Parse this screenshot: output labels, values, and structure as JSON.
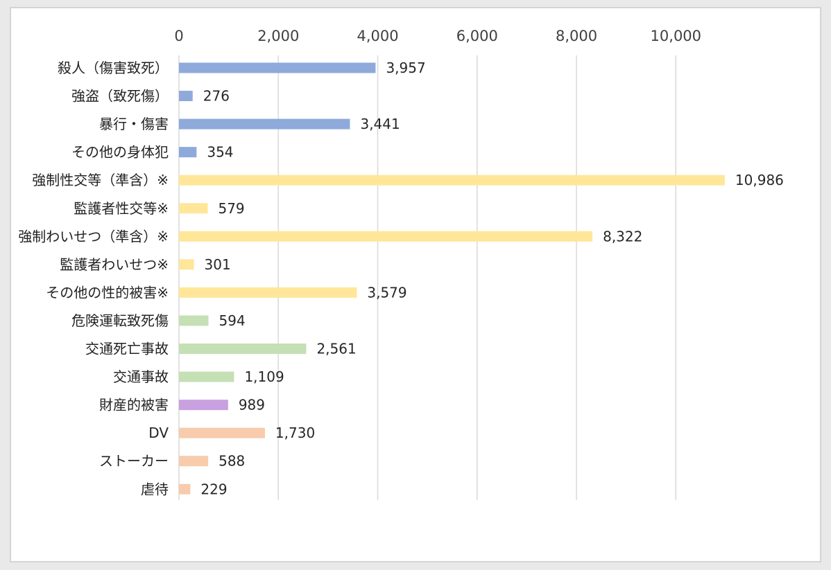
{
  "chart_data": {
    "type": "bar",
    "orientation": "horizontal",
    "title": "",
    "xlabel": "",
    "ylabel": "",
    "xlim": [
      0,
      11000
    ],
    "x_ticks": [
      0,
      2000,
      4000,
      6000,
      8000,
      10000
    ],
    "x_tick_labels": [
      "0",
      "2,000",
      "4,000",
      "6,000",
      "8,000",
      "10,000"
    ],
    "axis_position": "top",
    "grid": true,
    "legend": "none",
    "categories": [
      "殺人（傷害致死）",
      "強盗（致死傷）",
      "暴行・傷害",
      "その他の身体犯",
      "強制性交等（準含）※",
      "監護者性交等※",
      "強制わいせつ（準含）※",
      "監護者わいせつ※",
      "その他の性的被害※",
      "危険運転致死傷",
      "交通死亡事故",
      "交通事故",
      "財産的被害",
      "DV",
      "ストーカー",
      "虐待"
    ],
    "values": [
      3957,
      276,
      3441,
      354,
      10986,
      579,
      8322,
      301,
      3579,
      594,
      2561,
      1109,
      989,
      1730,
      588,
      229
    ],
    "value_labels": [
      "3,957",
      "276",
      "3,441",
      "354",
      "10,986",
      "579",
      "8,322",
      "301",
      "3,579",
      "594",
      "2,561",
      "1,109",
      "989",
      "1,730",
      "588",
      "229"
    ],
    "bar_colors": [
      "#8eaadb",
      "#8eaadb",
      "#8eaadb",
      "#8eaadb",
      "#ffe699",
      "#ffe699",
      "#ffe699",
      "#ffe699",
      "#ffe699",
      "#c5e0b4",
      "#c5e0b4",
      "#c5e0b4",
      "#c9a0e0",
      "#f8cbad",
      "#f8cbad",
      "#f8cbad"
    ],
    "grid_color": "#d9d9d9"
  }
}
